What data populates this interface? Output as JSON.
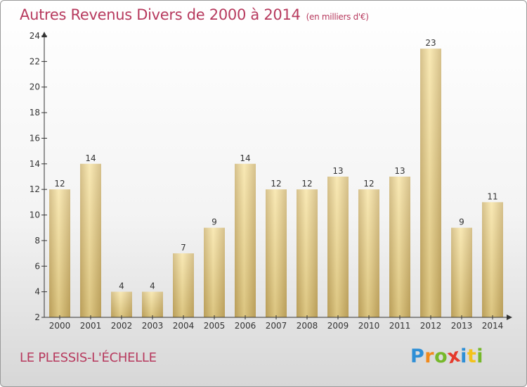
{
  "title": "Autres Revenus Divers de 2000 à 2014",
  "subtitle": "(en milliers d'€)",
  "commune": "LE PLESSIS-L'ÉCHELLE",
  "logo": {
    "letters": [
      {
        "char": "P",
        "color": "#2e8fd6"
      },
      {
        "char": "r",
        "color": "#f18a1c"
      },
      {
        "char": "o",
        "color": "#76b82a"
      },
      {
        "char": "x",
        "color": "#e53a2c"
      },
      {
        "char": "i",
        "color": "#2e8fd6"
      },
      {
        "char": "t",
        "color": "#f3c21b"
      },
      {
        "char": "i",
        "color": "#76b82a"
      }
    ]
  },
  "colors": {
    "title": "#b73a5e",
    "bar_light": "#f7e29d",
    "bar_dark": "#c8ac66",
    "axis": "#333333"
  },
  "chart_data": {
    "type": "bar",
    "categories": [
      "2000",
      "2001",
      "2002",
      "2003",
      "2004",
      "2005",
      "2006",
      "2007",
      "2008",
      "2009",
      "2010",
      "2011",
      "2012",
      "2013",
      "2014"
    ],
    "values": [
      12,
      14,
      4,
      4,
      7,
      9,
      14,
      12,
      12,
      13,
      12,
      13,
      23,
      9,
      11
    ],
    "ylim": [
      2,
      24
    ],
    "yticks": [
      2,
      4,
      6,
      8,
      10,
      12,
      14,
      16,
      18,
      20,
      22,
      24
    ],
    "grid": false,
    "legend": "none"
  }
}
